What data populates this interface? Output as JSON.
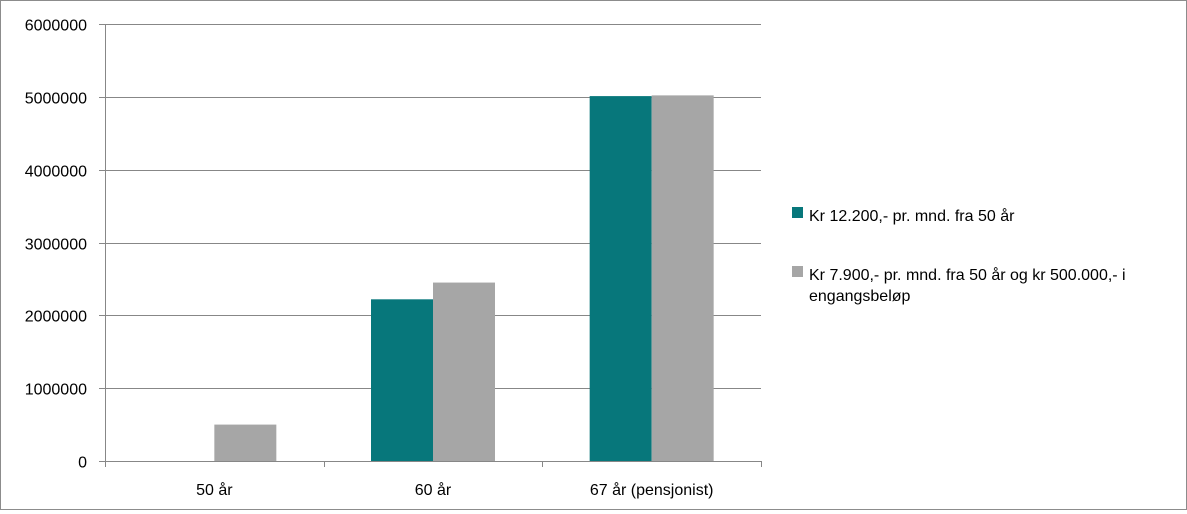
{
  "chart_data": {
    "type": "bar",
    "title": "",
    "xlabel": "",
    "ylabel": "",
    "categories": [
      "50 år",
      "60 år",
      "67 år (pensjonist)"
    ],
    "series": [
      {
        "name": "Kr 12.200,- pr. mnd. fra 50 år",
        "color": "#07777b",
        "values": [
          0,
          2220000,
          5010000
        ]
      },
      {
        "name": "Kr 7.900,- pr. mnd. fra 50 år og kr 500.000,- i engangsbeløp",
        "color": "#a6a6a6",
        "values": [
          500000,
          2450000,
          5020000
        ]
      }
    ],
    "ylim": [
      0,
      6000000
    ],
    "yticks": [
      0,
      1000000,
      2000000,
      3000000,
      4000000,
      5000000,
      6000000
    ],
    "legend_position": "right",
    "grid": true
  },
  "legend": {
    "lines": [
      [
        "Kr 12.200,- pr. mnd. fra 50 år"
      ],
      [
        "Kr 7.900,- pr. mnd. fra 50 år og kr 500.000,- i",
        "engangsbeløp"
      ]
    ]
  }
}
